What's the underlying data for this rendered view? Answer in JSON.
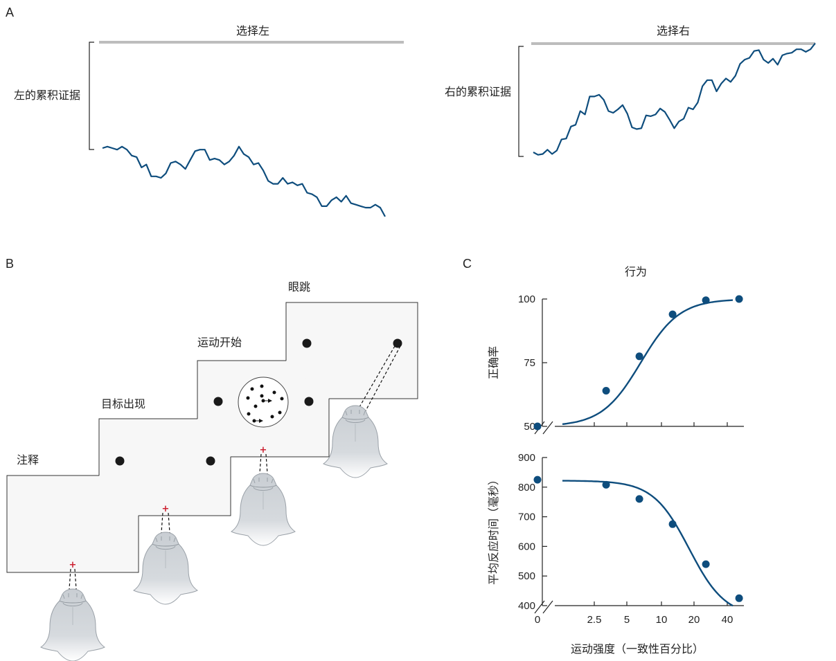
{
  "panels": {
    "a": {
      "letter": "A",
      "left_label": "左的累积证据",
      "left_bound": "选择左",
      "right_label": "右的累积证据",
      "right_bound": "选择右"
    },
    "b": {
      "letter": "B",
      "stages": [
        "注释",
        "目标出现",
        "运动开始",
        "眼跳"
      ]
    },
    "c": {
      "letter": "C",
      "title": "行为"
    }
  },
  "colors": {
    "trace": "#0e4d7d",
    "bound": "#bdbdbd",
    "fixation": "#cc1f2f",
    "screen": "#f7f7f7"
  },
  "chart_data": [
    {
      "type": "line",
      "panel": "A-left",
      "ylabel": "左的累积证据",
      "bound_label": "选择左",
      "series": [
        {
          "values": [
            0,
            1,
            0,
            -1,
            1,
            -1,
            -5,
            -6,
            -13,
            -11,
            -19,
            -19,
            -20,
            -17,
            -10,
            -9,
            -11,
            -14,
            -8,
            -2,
            -1,
            -1,
            -8,
            -7,
            -8,
            -11,
            -9,
            -5,
            1,
            -4,
            -6,
            -11,
            -10,
            -15,
            -22,
            -24,
            -24,
            -20,
            -24,
            -23,
            -25,
            -24,
            -30,
            -31,
            -33,
            -39,
            -39,
            -35,
            -33,
            -36,
            -32,
            -37,
            -38,
            -39,
            -40,
            -40,
            -38,
            -40,
            -46
          ]
        }
      ]
    },
    {
      "type": "line",
      "panel": "A-right",
      "ylabel": "右的累积证据",
      "bound_label": "选择右",
      "series": [
        {
          "values": [
            0,
            -3,
            -2,
            3,
            -2,
            2,
            15,
            16,
            30,
            32,
            48,
            44,
            65,
            65,
            67,
            61,
            48,
            46,
            50,
            55,
            45,
            29,
            27,
            28,
            43,
            42,
            44,
            51,
            47,
            38,
            28,
            36,
            39,
            52,
            50,
            58,
            77,
            84,
            84,
            71,
            80,
            86,
            82,
            89,
            103,
            108,
            110,
            118,
            119,
            108,
            104,
            109,
            102,
            113,
            115,
            116,
            120,
            120,
            117,
            120,
            127
          ]
        }
      ]
    },
    {
      "type": "scatter",
      "panel": "C-top",
      "title": "行为",
      "ylabel": "正确率",
      "ylim": [
        50,
        100
      ],
      "yticks": [
        "100",
        "75",
        "50"
      ],
      "x_tick_labels": [
        "0",
        "2.5",
        "5",
        "10",
        "20",
        "40"
      ],
      "series": [
        {
          "points": [
            [
              0,
              50
            ],
            [
              3.2,
              64
            ],
            [
              6.4,
              77.5
            ],
            [
              12.8,
              94
            ],
            [
              25.6,
              99.5
            ],
            [
              51.2,
              100
            ]
          ]
        }
      ],
      "fit_curve": true
    },
    {
      "type": "scatter",
      "panel": "C-bottom",
      "ylabel": "平均反应时间（毫秒）",
      "xlabel": "运动强度（一致性百分比）",
      "ylim": [
        400,
        900
      ],
      "yticks": [
        "900",
        "800",
        "700",
        "600",
        "500",
        "400"
      ],
      "x_tick_labels": [
        "0",
        "2.5",
        "5",
        "10",
        "20",
        "40"
      ],
      "series": [
        {
          "points": [
            [
              0,
              825
            ],
            [
              3.2,
              808
            ],
            [
              6.4,
              760
            ],
            [
              12.8,
              675
            ],
            [
              25.6,
              540
            ],
            [
              51.2,
              425
            ]
          ]
        }
      ],
      "fit_curve": true
    }
  ]
}
